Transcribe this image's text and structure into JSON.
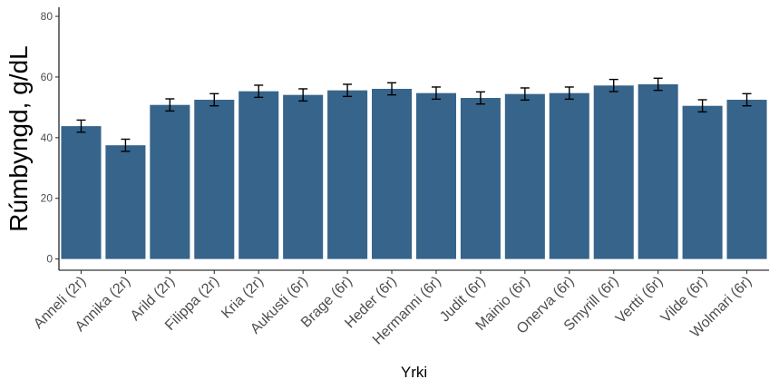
{
  "chart_data": {
    "type": "bar",
    "title": "",
    "xlabel": "Yrki",
    "ylabel": "Rúmbyngd, g/dL",
    "ylim": [
      0,
      83
    ],
    "yticks": [
      0,
      20,
      40,
      60,
      80
    ],
    "grid": false,
    "legend": "none",
    "bar_color": "#37648a",
    "error_bar_color": "#000000",
    "categories": [
      "Anneli (2r)",
      "Annika (2r)",
      "Arild (2r)",
      "Filippa (2r)",
      "Kria (2r)",
      "Aukusti (6r)",
      "Brage (6r)",
      "Heder (6r)",
      "Hermanni (6r)",
      "Judit (6r)",
      "Mainio (6r)",
      "Onerva (6r)",
      "Smyrill (6r)",
      "Vertti (6r)",
      "Vilde (6r)",
      "Wolmari (6r)"
    ],
    "values": [
      43.8,
      37.5,
      50.8,
      52.5,
      55.3,
      54.1,
      55.6,
      56.1,
      54.7,
      53.1,
      54.4,
      54.7,
      57.2,
      57.6,
      50.5,
      52.5
    ],
    "error_low": [
      41.8,
      35.5,
      48.8,
      50.5,
      53.3,
      52.1,
      53.6,
      54.1,
      52.7,
      51.1,
      52.4,
      52.7,
      55.2,
      55.6,
      48.5,
      50.5
    ],
    "error_high": [
      45.8,
      39.5,
      52.8,
      54.5,
      57.3,
      56.1,
      57.6,
      58.1,
      56.7,
      55.1,
      56.4,
      56.7,
      59.2,
      59.6,
      52.5,
      54.5
    ]
  }
}
